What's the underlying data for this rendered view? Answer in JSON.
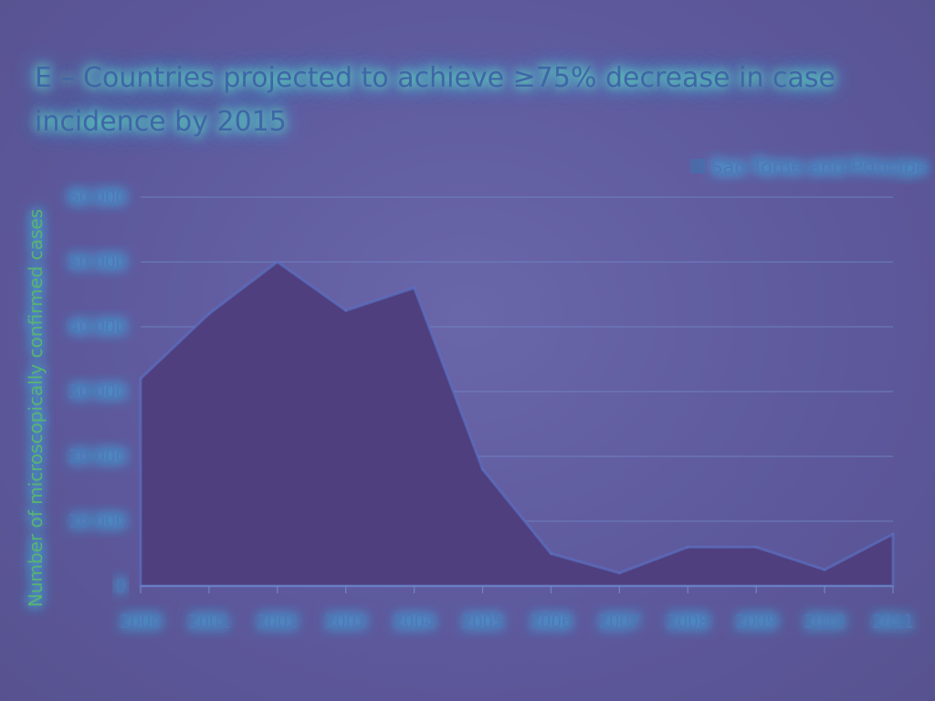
{
  "chart_data": {
    "type": "area",
    "title": "E – Countries projected to achieve ≥75% decrease in case incidence by 2015",
    "xlabel": "",
    "ylabel": "Number of microscopically confirmed cases",
    "categories": [
      "2000",
      "2001",
      "2002",
      "2003",
      "2004",
      "2005",
      "2006",
      "2007",
      "2008",
      "2009",
      "2010",
      "2011"
    ],
    "series": [
      {
        "name": "Sao Tome and Principe",
        "values": [
          32000,
          42000,
          50000,
          42500,
          46000,
          18000,
          5000,
          2000,
          6000,
          6000,
          2500,
          8000
        ]
      }
    ],
    "ylim": [
      0,
      60000
    ],
    "yticks": [
      0,
      10000,
      20000,
      30000,
      40000,
      50000,
      60000
    ],
    "ytick_labels": [
      "0",
      "10 000",
      "20 000",
      "30 000",
      "40 000",
      "50 000",
      "60 000"
    ],
    "grid": true,
    "legend_position": "top-right",
    "colors": {
      "area": "#4f3f7e",
      "grid": "#6f86c4",
      "text": "#4d76b8",
      "glow": "#38c8ff"
    }
  }
}
